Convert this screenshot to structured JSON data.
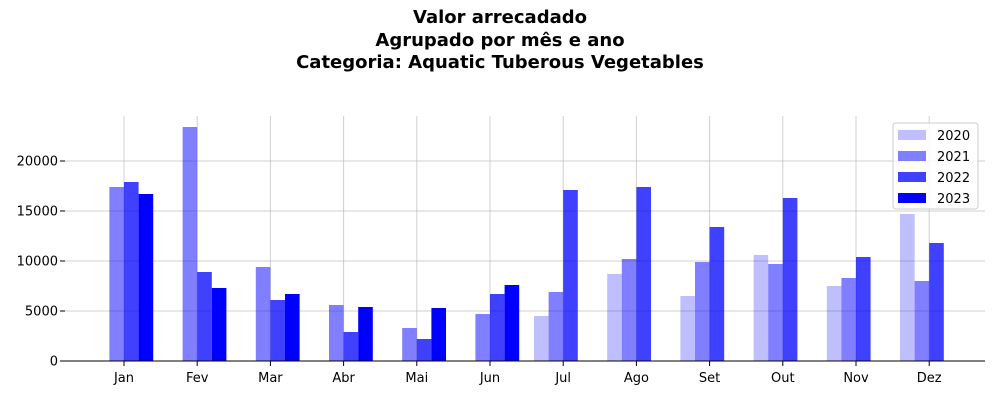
{
  "chart_data": {
    "type": "bar",
    "title_lines": [
      "Valor arrecadado",
      "Agrupado por mês e ano",
      "Categoria: Aquatic Tuberous Vegetables"
    ],
    "categories": [
      "Jan",
      "Fev",
      "Mar",
      "Abr",
      "Mai",
      "Jun",
      "Jul",
      "Ago",
      "Set",
      "Out",
      "Nov",
      "Dez"
    ],
    "series": [
      {
        "name": "2020",
        "color": "#0000ff",
        "opacity": 0.25,
        "values": [
          null,
          null,
          null,
          null,
          null,
          null,
          4500,
          8700,
          6500,
          10600,
          7500,
          14700
        ]
      },
      {
        "name": "2021",
        "color": "#0000ff",
        "opacity": 0.5,
        "values": [
          17400,
          23400,
          9400,
          5600,
          3300,
          4700,
          6900,
          10200,
          9900,
          9700,
          8300,
          8000
        ]
      },
      {
        "name": "2022",
        "color": "#0000ff",
        "opacity": 0.75,
        "values": [
          17900,
          8900,
          6100,
          2900,
          2200,
          6700,
          17100,
          17400,
          13400,
          16300,
          10400,
          11800
        ]
      },
      {
        "name": "2023",
        "color": "#0000ff",
        "opacity": 1.0,
        "values": [
          16700,
          7300,
          6700,
          5400,
          5300,
          7600,
          null,
          null,
          null,
          null,
          null,
          null
        ]
      }
    ],
    "yticks": [
      0,
      5000,
      10000,
      15000,
      20000
    ],
    "ylim": [
      0,
      24500
    ],
    "grid": true,
    "legend_position": "top-right",
    "xlabel": "",
    "ylabel": ""
  }
}
